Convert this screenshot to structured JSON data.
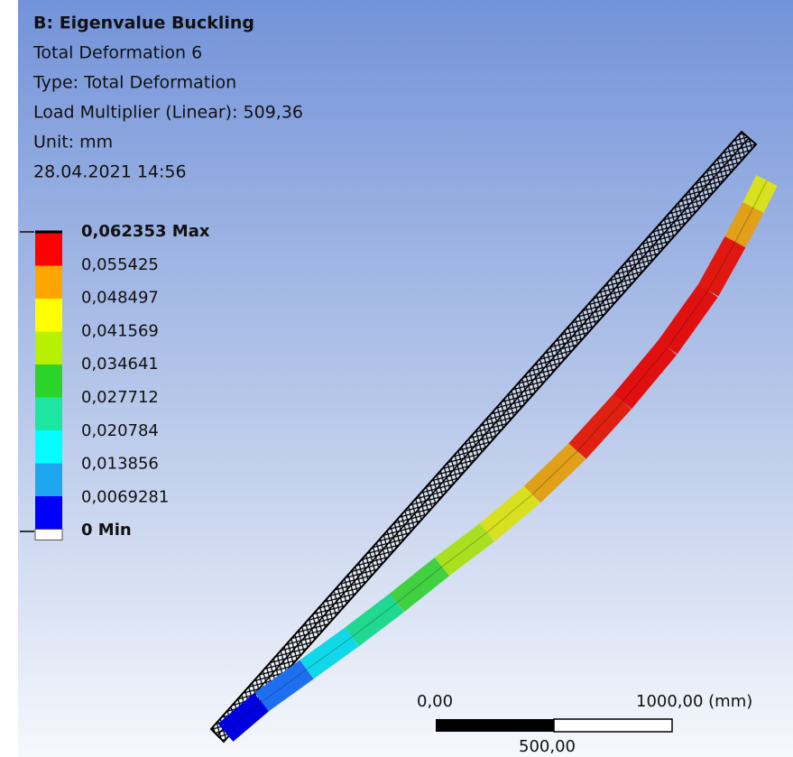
{
  "header": {
    "title": "B: Eigenvalue Buckling",
    "lines": [
      "Total Deformation 6",
      "Type: Total Deformation",
      "Load Multiplier (Linear): 509,36",
      "Unit: mm",
      "28.04.2021 14:56"
    ]
  },
  "legend": {
    "entries": [
      "0,062353 Max",
      "0,055425",
      "0,048497",
      "0,041569",
      "0,034641",
      "0,027712",
      "0,020784",
      "0,013856",
      "0,0069281",
      "0 Min"
    ]
  },
  "scale_bar": {
    "start": "0,00",
    "end": "1000,00 (mm)",
    "mid": "500,00"
  }
}
